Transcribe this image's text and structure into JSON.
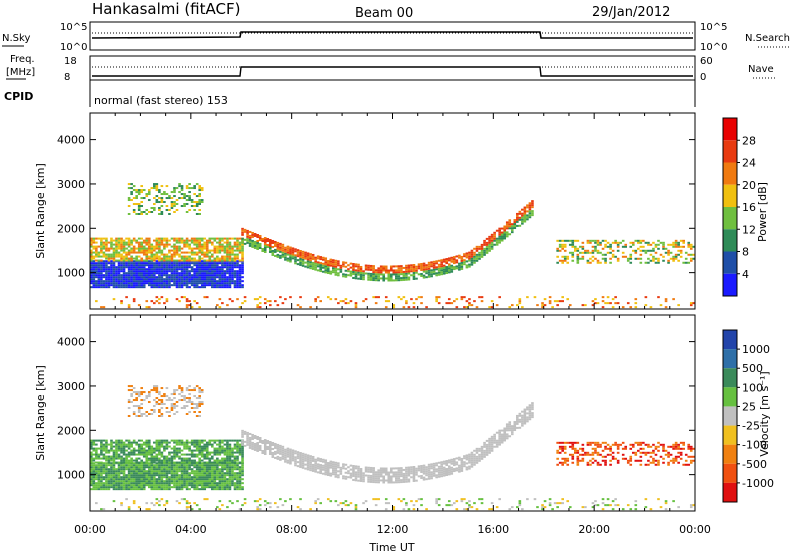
{
  "header": {
    "station": "Hankasalmi (fitACF)",
    "beam": "Beam 00",
    "date": "29/Jan/2012"
  },
  "status_panel": {
    "nsky_label": "N.Sky",
    "nsky_top": "10^5",
    "nsky_bottom": "10^0",
    "nsearch_label": "N.Search",
    "nsearch_top": "10^5",
    "nsearch_bottom": "10^0",
    "freq_label_1": "Freq.",
    "freq_label_2": "[MHz]",
    "freq_top": "18",
    "freq_bottom": "8",
    "nave_label": "Nave",
    "nave_top": "60",
    "nave_bottom": "0",
    "cpid_label": "CPID",
    "cpid_text": "normal (fast stereo) 153"
  },
  "chart_data": [
    {
      "type": "heatmap",
      "panel": "power",
      "xlabel": "",
      "ylabel": "Slant Range [km]",
      "xlim_hours": [
        0,
        24
      ],
      "ylim_km": [
        180,
        4600
      ],
      "yticks": [
        "1000",
        "2000",
        "3000",
        "4000"
      ],
      "colorbar": {
        "label": "Power [dB]",
        "ticks": [
          "4",
          "8",
          "12",
          "16",
          "20",
          "24",
          "28"
        ],
        "colors": [
          "#1a1aff",
          "#1f4fa8",
          "#2e8b57",
          "#6fbf3f",
          "#f0c010",
          "#f07a10",
          "#e83a10",
          "#e80000"
        ]
      }
    },
    {
      "type": "heatmap",
      "panel": "velocity",
      "xlabel": "Time UT",
      "ylabel": "Slant Range [km]",
      "xlim_hours": [
        0,
        24
      ],
      "ylim_km": [
        180,
        4600
      ],
      "yticks": [
        "1000",
        "2000",
        "3000",
        "4000"
      ],
      "xticks": [
        "00:00",
        "04:00",
        "08:00",
        "12:00",
        "16:00",
        "20:00",
        "00:00"
      ],
      "colorbar": {
        "label": "Velocity [m s⁻¹]",
        "ticks": [
          "1000",
          "500",
          "100",
          "25",
          "-25",
          "-100",
          "-500",
          "-1000"
        ],
        "colors": [
          "#2244aa",
          "#2e6fa8",
          "#3a8a5a",
          "#66c040",
          "#c0c0c0",
          "#f0c020",
          "#f08010",
          "#f05010",
          "#e01010"
        ]
      }
    }
  ]
}
